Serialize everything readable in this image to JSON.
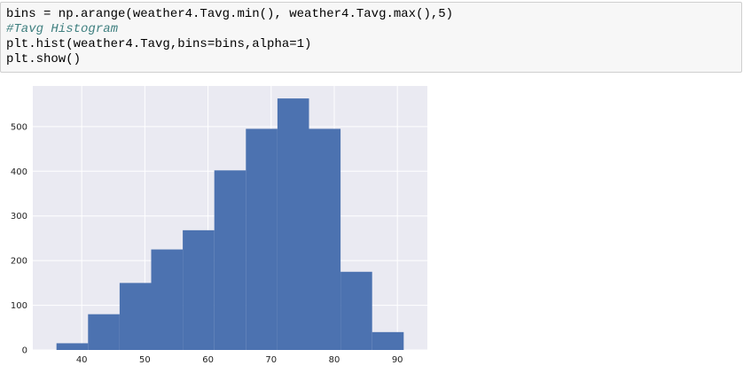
{
  "code_cell": {
    "lines": [
      {
        "text": "bins = np.arange(weather4.Tavg.min(), weather4.Tavg.max(),5)",
        "kind": "code"
      },
      {
        "text": "#Tavg Histogram",
        "kind": "comment"
      },
      {
        "text": "plt.hist(weather4.Tavg,bins=bins,alpha=1)",
        "kind": "code"
      },
      {
        "text": "plt.show()",
        "kind": "code"
      }
    ]
  },
  "colors": {
    "bar": "#4c72b0",
    "plot_background": "#eaeaf2",
    "grid": "#ffffff"
  },
  "chart_data": {
    "type": "bar",
    "style": "histogram",
    "bin_edges": [
      36,
      41,
      46,
      51,
      56,
      61,
      66,
      71,
      76,
      81,
      86,
      91
    ],
    "values": [
      15,
      80,
      150,
      225,
      268,
      402,
      495,
      563,
      495,
      175,
      40
    ],
    "xlim": [
      32.25,
      94.75
    ],
    "ylim": [
      0,
      591
    ],
    "x_ticks": [
      40,
      50,
      60,
      70,
      80,
      90
    ],
    "y_ticks": [
      0,
      100,
      200,
      300,
      400,
      500
    ],
    "grid": true
  }
}
